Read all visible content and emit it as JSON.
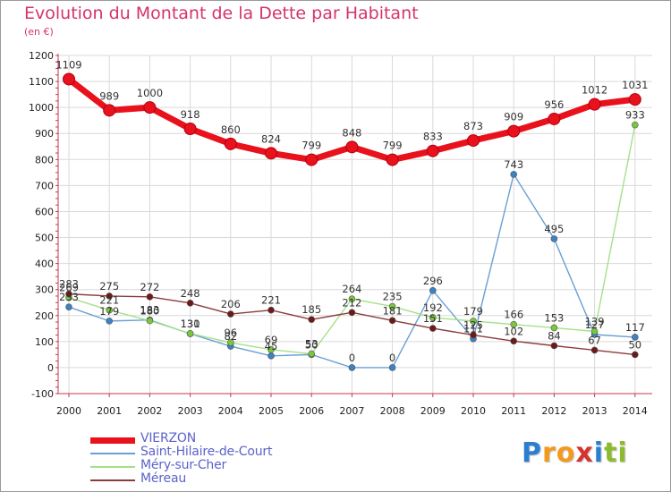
{
  "header": {
    "title": "Evolution du Montant de la Dette par Habitant",
    "subtitle": "(en €)"
  },
  "colors": {
    "title": "#d6336c",
    "axis": "#c8364f",
    "grid": "#d9d9d9",
    "legend_text": "#5b63c9"
  },
  "logo": {
    "letters": [
      {
        "ch": "P",
        "color": "#2a7fcf"
      },
      {
        "ch": "r",
        "color": "#f39a1e"
      },
      {
        "ch": "o",
        "color": "#f39a1e"
      },
      {
        "ch": "x",
        "color": "#d8322d"
      },
      {
        "ch": "i",
        "color": "#2a7fcf"
      },
      {
        "ch": "t",
        "color": "#8cbc2d"
      },
      {
        "ch": "i",
        "color": "#8cbc2d"
      }
    ]
  },
  "chart_data": {
    "type": "line",
    "title": "Evolution du Montant de la Dette par Habitant",
    "subtitle": "(en €)",
    "xlabel": "",
    "ylabel": "",
    "x": [
      "2000",
      "2001",
      "2002",
      "2003",
      "2004",
      "2005",
      "2006",
      "2007",
      "2008",
      "2009",
      "2010",
      "2011",
      "2012",
      "2013",
      "2014"
    ],
    "ylim": [
      -100,
      1200
    ],
    "yticks": [
      -100,
      0,
      100,
      200,
      300,
      400,
      500,
      600,
      700,
      800,
      900,
      1000,
      1100,
      1200
    ],
    "grid": true,
    "legend_position": "bottom-left",
    "series": [
      {
        "name": "VIERZON",
        "color": "#e8111c",
        "dot": "#e8111c",
        "width": "thick",
        "values": [
          1109,
          989,
          1000,
          918,
          860,
          824,
          799,
          848,
          799,
          833,
          873,
          909,
          956,
          1012,
          1031
        ]
      },
      {
        "name": "Saint-Hilaire-de-Court",
        "color": "#6a9fd4",
        "dot": "#3b82c4",
        "width": "thin",
        "values": [
          233,
          179,
          183,
          130,
          82,
          45,
          50,
          0,
          0,
          296,
          111,
          743,
          495,
          127,
          117
        ]
      },
      {
        "name": "Méry-sur-Cher",
        "color": "#a6e08a",
        "dot": "#78c83c",
        "width": "thin",
        "values": [
          269,
          221,
          180,
          131,
          96,
          69,
          53,
          264,
          235,
          192,
          179,
          166,
          153,
          139,
          933
        ]
      },
      {
        "name": "Méreau",
        "color": "#8c3b3b",
        "dot": "#6b1a1a",
        "width": "thin",
        "values": [
          283,
          275,
          272,
          248,
          206,
          221,
          185,
          212,
          181,
          151,
          125,
          102,
          84,
          67,
          50
        ]
      }
    ]
  }
}
